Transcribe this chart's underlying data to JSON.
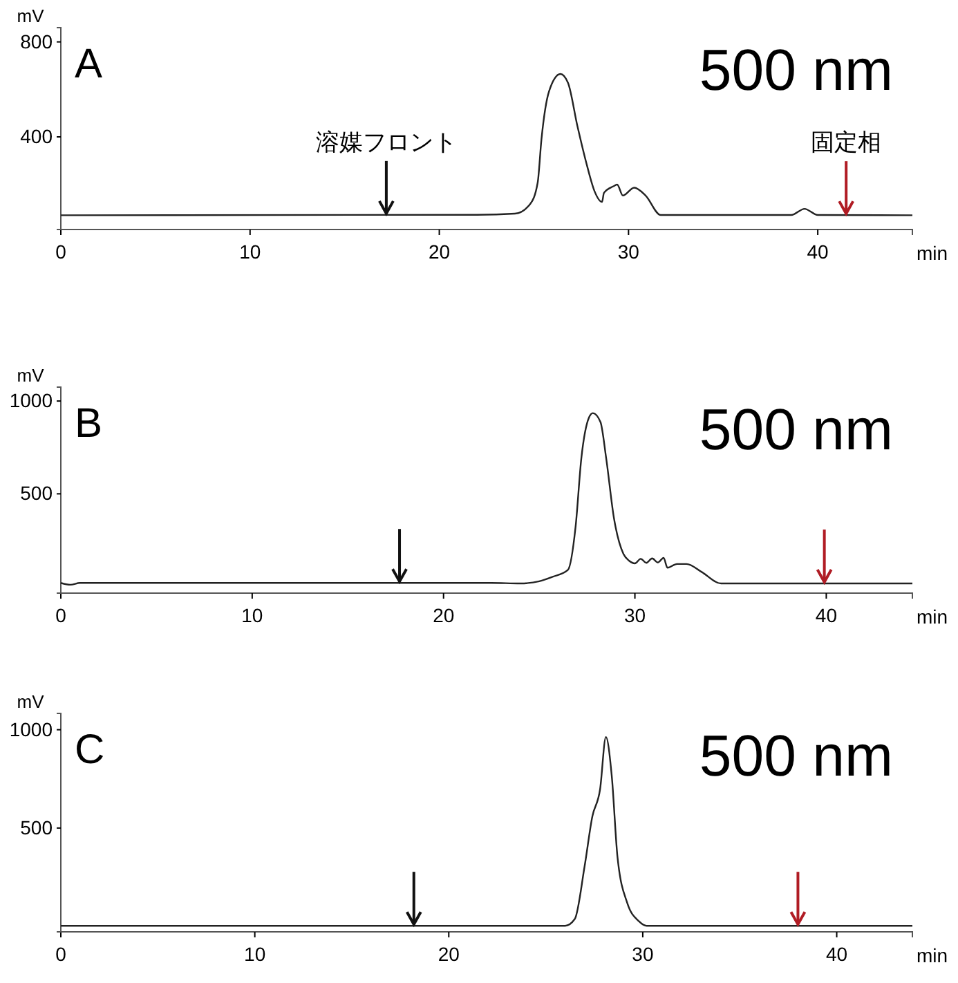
{
  "chart_data": [
    {
      "type": "line",
      "title": "A",
      "ylabel": "mV",
      "xlabel": "min",
      "annotations": [
        "500 nm"
      ],
      "xlim": [
        0,
        45
      ],
      "xticks": [
        0,
        10,
        20,
        30,
        40
      ],
      "ylim": [
        10,
        860
      ],
      "yticks": [
        400,
        800
      ],
      "marker": "none",
      "line_style": "solid",
      "series": [
        {
          "color": "#222222",
          "x": [
            0,
            22,
            24,
            24.8,
            25.2,
            25.4,
            25.8,
            26.4,
            26.8,
            27.3,
            27.8,
            28.2,
            28.6,
            28.7,
            29.2,
            29.4,
            29.7,
            30.3,
            30.9,
            31.7,
            38.6,
            39.3,
            40,
            45
          ],
          "values": [
            70,
            72,
            77,
            117,
            208,
            391,
            592,
            665,
            628,
            445,
            281,
            172,
            126,
            164,
            192,
            199,
            153,
            186,
            153,
            71,
            71,
            97,
            71,
            70
          ]
        }
      ],
      "ref_lines": [
        {
          "axis": "x",
          "value": 17.2,
          "label": "溶媒フロント",
          "color": "#111111"
        },
        {
          "axis": "x",
          "value": 41.5,
          "label": "固定相",
          "color": "#b01c24"
        }
      ]
    },
    {
      "type": "line",
      "title": "B",
      "ylabel": "mV",
      "xlabel": "min",
      "annotations": [
        "500 nm"
      ],
      "xlim": [
        0,
        44.5
      ],
      "xticks": [
        0,
        10,
        20,
        30,
        40
      ],
      "ylim": [
        -35,
        1075
      ],
      "yticks": [
        500,
        1000
      ],
      "marker": "none",
      "line_style": "solid",
      "series": [
        {
          "color": "#222222",
          "x": [
            0,
            0.5,
            1,
            22.5,
            24,
            25,
            25.7,
            26.5,
            26.9,
            27.2,
            27.6,
            27.8,
            28.2,
            28.5,
            28.9,
            29.4,
            29.7,
            30,
            30.3,
            30.6,
            30.9,
            31.2,
            31.5,
            31.7,
            32.2,
            32.7,
            33.5,
            34.5,
            44.5
          ],
          "values": [
            20,
            10,
            20,
            20,
            17,
            29,
            53,
            90,
            323,
            691,
            911,
            935,
            887,
            691,
            372,
            176,
            139,
            125,
            150,
            128,
            152,
            130,
            155,
            102,
            122,
            122,
            78,
            17,
            17
          ]
        }
      ],
      "ref_lines": [
        {
          "axis": "x",
          "value": 17.7,
          "color": "#111111"
        },
        {
          "axis": "x",
          "value": 39.9,
          "color": "#b01c24"
        }
      ]
    },
    {
      "type": "line",
      "title": "C",
      "ylabel": "mV",
      "xlabel": "min",
      "annotations": [
        "500 nm"
      ],
      "xlim": [
        0,
        43.9
      ],
      "xticks": [
        0,
        10,
        20,
        30,
        40
      ],
      "ylim": [
        -28,
        1083
      ],
      "yticks": [
        500,
        1000
      ],
      "marker": "none",
      "line_style": "solid",
      "series": [
        {
          "color": "#222222",
          "x": [
            0,
            26,
            26.5,
            27,
            27.4,
            27.8,
            28.1,
            28.4,
            28.7,
            29.2,
            29.8,
            30.2,
            43.9
          ],
          "values": [
            3,
            3,
            38,
            304,
            558,
            697,
            963,
            767,
            350,
            119,
            26,
            3,
            3
          ]
        }
      ],
      "ref_lines": [
        {
          "axis": "x",
          "value": 18.2,
          "color": "#111111"
        },
        {
          "axis": "x",
          "value": 38,
          "color": "#b01c24"
        }
      ]
    }
  ]
}
